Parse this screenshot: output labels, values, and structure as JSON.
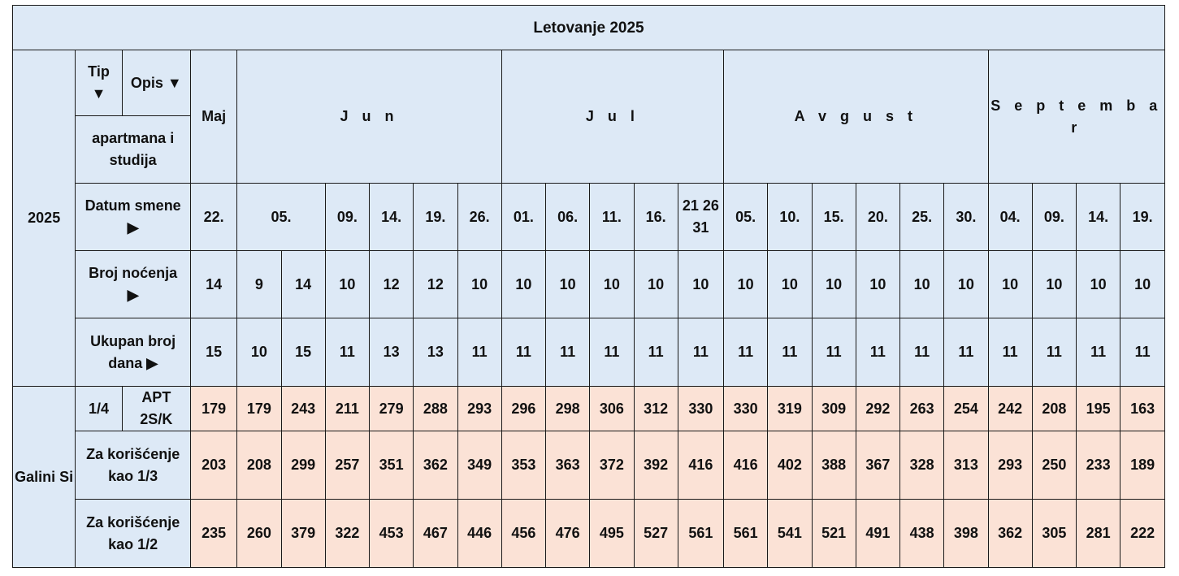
{
  "title": "Letovanje 2025",
  "year": "2025",
  "header": {
    "tip": "Tip",
    "tip_arrow": "▼",
    "opis": "Opis ▼",
    "apartmana": "apartmana i studija",
    "datum_label": "Datum smene",
    "nocenja_label": "Broj noćenja",
    "dana_label": "Ukupan broj dana",
    "arrow_right": "▶"
  },
  "months": [
    "Maj",
    "J u n",
    "J u l",
    "A v g u s t",
    "S e p t e m b a r"
  ],
  "dates": [
    "22.",
    "05.",
    "09.",
    "14.",
    "19.",
    "26.",
    "01.",
    "06.",
    "11.",
    "16.",
    "21 26 31",
    "05.",
    "10.",
    "15.",
    "20.",
    "25.",
    "30.",
    "04.",
    "09.",
    "14.",
    "19."
  ],
  "nights": [
    "14",
    "9",
    "14",
    "10",
    "12",
    "12",
    "10",
    "10",
    "10",
    "10",
    "10",
    "10",
    "10",
    "10",
    "10",
    "10",
    "10",
    "10",
    "10",
    "10",
    "10",
    "10"
  ],
  "days": [
    "15",
    "10",
    "15",
    "11",
    "13",
    "13",
    "11",
    "11",
    "11",
    "11",
    "11",
    "11",
    "11",
    "11",
    "11",
    "11",
    "11",
    "11",
    "11",
    "11",
    "11",
    "11"
  ],
  "hotel": {
    "name": "Galini Si",
    "rows": [
      {
        "tip": "1/4",
        "opis": "APT 2S/K",
        "prices": [
          "179",
          "179",
          "243",
          "211",
          "279",
          "288",
          "293",
          "296",
          "298",
          "306",
          "312",
          "330",
          "330",
          "319",
          "309",
          "292",
          "263",
          "254",
          "242",
          "208",
          "195",
          "163"
        ]
      },
      {
        "label": "Za korišćenje kao 1/3",
        "prices": [
          "203",
          "208",
          "299",
          "257",
          "351",
          "362",
          "349",
          "353",
          "363",
          "372",
          "392",
          "416",
          "416",
          "402",
          "388",
          "367",
          "328",
          "313",
          "293",
          "250",
          "233",
          "189"
        ]
      },
      {
        "label": "Za korišćenje kao 1/2",
        "prices": [
          "235",
          "260",
          "379",
          "322",
          "453",
          "467",
          "446",
          "456",
          "476",
          "495",
          "527",
          "561",
          "561",
          "541",
          "521",
          "491",
          "438",
          "398",
          "362",
          "305",
          "281",
          "222"
        ]
      }
    ]
  }
}
